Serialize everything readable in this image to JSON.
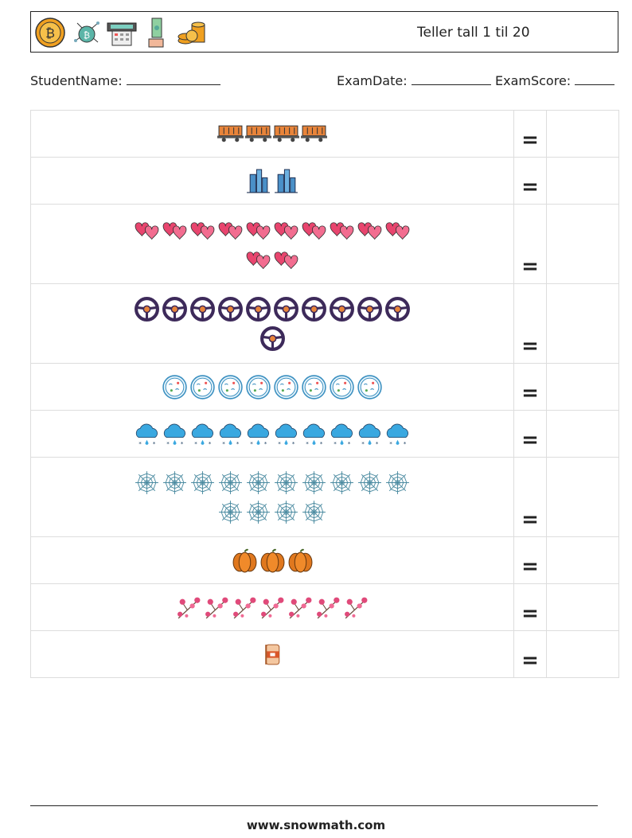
{
  "header": {
    "title": "Teller tall 1 til 20",
    "icons": [
      "bitcoin-coin-icon",
      "crypto-network-icon",
      "atm-machine-icon",
      "hand-banknote-icon",
      "coin-stack-icon"
    ]
  },
  "info": {
    "student_label": "StudentName:",
    "date_label": "ExamDate:",
    "score_label": "ExamScore:"
  },
  "rows": [
    {
      "item": "freight-wagon",
      "count": 4,
      "equals": "="
    },
    {
      "item": "skyscraper",
      "count": 2,
      "equals": "="
    },
    {
      "item": "hearts",
      "count": 12,
      "equals": "="
    },
    {
      "item": "steering-wheel",
      "count": 11,
      "equals": "="
    },
    {
      "item": "petri-dish",
      "count": 8,
      "equals": "="
    },
    {
      "item": "snow-cloud",
      "count": 10,
      "equals": "="
    },
    {
      "item": "spider-web",
      "count": 14,
      "equals": "="
    },
    {
      "item": "pumpkin",
      "count": 3,
      "equals": "="
    },
    {
      "item": "cherry-blossom-branch",
      "count": 7,
      "equals": "="
    },
    {
      "item": "bandage-roll",
      "count": 1,
      "equals": "="
    }
  ],
  "footer": {
    "url": "www.snowmath.com"
  }
}
